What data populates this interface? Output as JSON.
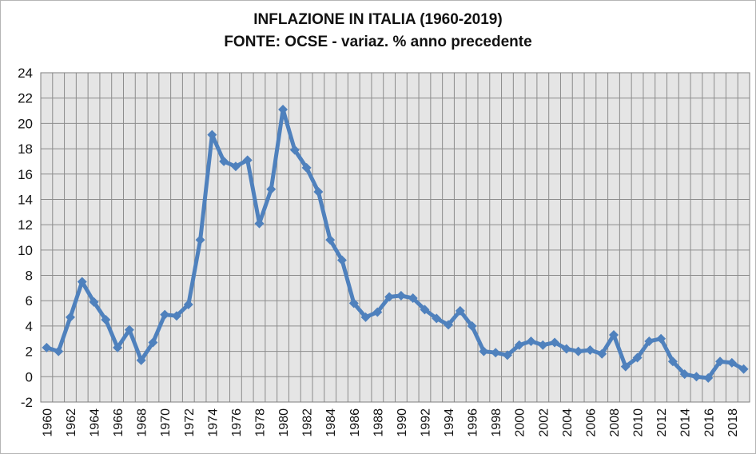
{
  "chart_data": {
    "type": "line",
    "title": "INFLAZIONE IN ITALIA (1960-2019)",
    "subtitle": "FONTE: OCSE - variaz. % anno precedente",
    "xlabel": "",
    "ylabel": "",
    "ylim": [
      -2,
      24
    ],
    "yticks": [
      -2,
      0,
      2,
      4,
      6,
      8,
      10,
      12,
      14,
      16,
      18,
      20,
      22,
      24
    ],
    "xlim": [
      1960,
      2019
    ],
    "xticks": [
      1960,
      1962,
      1964,
      1966,
      1968,
      1970,
      1972,
      1974,
      1976,
      1978,
      1980,
      1982,
      1984,
      1986,
      1988,
      1990,
      1992,
      1994,
      1996,
      1998,
      2000,
      2002,
      2004,
      2006,
      2008,
      2010,
      2012,
      2014,
      2016,
      2018
    ],
    "grid": true,
    "legend": "none",
    "series": [
      {
        "color": "#4f81bd",
        "marker": "diamond",
        "x": [
          1960,
          1961,
          1962,
          1963,
          1964,
          1965,
          1966,
          1967,
          1968,
          1969,
          1970,
          1971,
          1972,
          1973,
          1974,
          1975,
          1976,
          1977,
          1978,
          1979,
          1980,
          1981,
          1982,
          1983,
          1984,
          1985,
          1986,
          1987,
          1988,
          1989,
          1990,
          1991,
          1992,
          1993,
          1994,
          1995,
          1996,
          1997,
          1998,
          1999,
          2000,
          2001,
          2002,
          2003,
          2004,
          2005,
          2006,
          2007,
          2008,
          2009,
          2010,
          2011,
          2012,
          2013,
          2014,
          2015,
          2016,
          2017,
          2018,
          2019
        ],
        "values": [
          2.3,
          2.0,
          4.7,
          7.5,
          5.9,
          4.5,
          2.3,
          3.7,
          1.3,
          2.7,
          4.9,
          4.8,
          5.7,
          10.8,
          19.1,
          17.0,
          16.6,
          17.1,
          12.1,
          14.8,
          21.1,
          17.9,
          16.5,
          14.6,
          10.8,
          9.2,
          5.8,
          4.7,
          5.1,
          6.3,
          6.4,
          6.2,
          5.3,
          4.6,
          4.1,
          5.2,
          4.0,
          2.0,
          1.9,
          1.7,
          2.5,
          2.8,
          2.5,
          2.7,
          2.2,
          2.0,
          2.1,
          1.8,
          3.3,
          0.8,
          1.5,
          2.8,
          3.0,
          1.2,
          0.2,
          0.0,
          -0.1,
          1.2,
          1.1,
          0.6
        ]
      }
    ]
  },
  "colors": {
    "plot_background": "#e5e5e5",
    "grid": "#8c8c8c",
    "series": "#4f81bd"
  }
}
